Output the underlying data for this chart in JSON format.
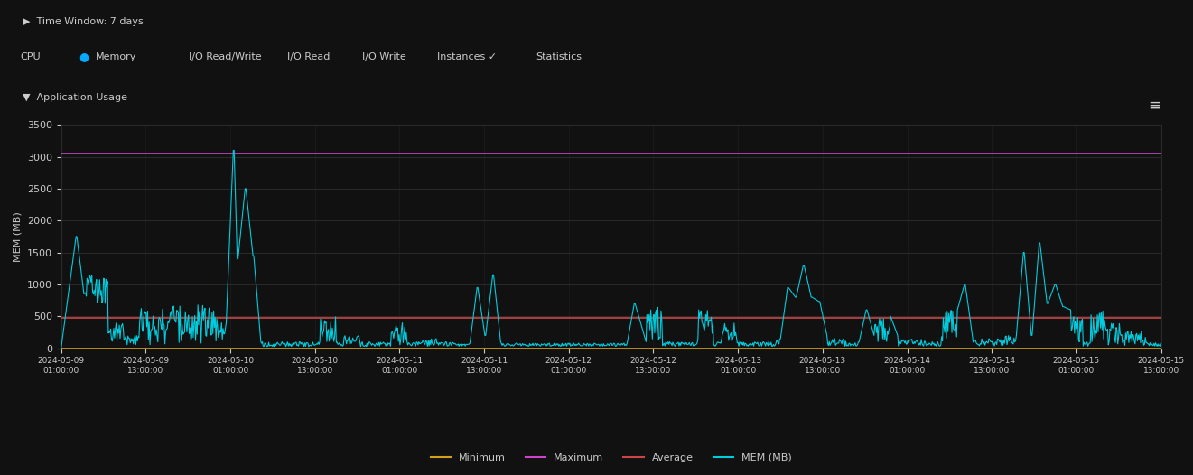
{
  "background_color": "#111111",
  "plot_bg_color": "#111111",
  "title_bar_color": "#1a1a1a",
  "grid_color": "#2a2a2a",
  "text_color": "#cccccc",
  "ylabel": "MEM (MB)",
  "ylim": [
    0,
    3500
  ],
  "yticks": [
    0,
    500,
    1000,
    1500,
    2000,
    2500,
    3000,
    3500
  ],
  "minimum_value": 0,
  "maximum_value": 3050,
  "average_value": 480,
  "minimum_color": "#d4a017",
  "maximum_color": "#cc44cc",
  "average_color": "#cc4444",
  "mem_color": "#00ccdd",
  "header_text": "Time Window: 7 days",
  "section_text": "Application Usage",
  "nav_items": [
    "CPU",
    "Memory",
    "I/O Read/Write",
    "I/O Read",
    "I/O Write",
    "Instances",
    "Statistics"
  ],
  "x_tick_labels": [
    "2024-05-09\n01:00:00",
    "2024-05-09\n13:00:00",
    "2024-05-10\n01:00:00",
    "2024-05-10\n13:00:00",
    "2024-05-11\n01:00:00",
    "2024-05-11\n13:00:00",
    "2024-05-12\n01:00:00",
    "2024-05-12\n13:00:00",
    "2024-05-13\n01:00:00",
    "2024-05-13\n13:00:00",
    "2024-05-14\n01:00:00",
    "2024-05-14\n13:00:00",
    "2024-05-15\n01:00:00",
    "2024-05-15\n13:00:00"
  ]
}
